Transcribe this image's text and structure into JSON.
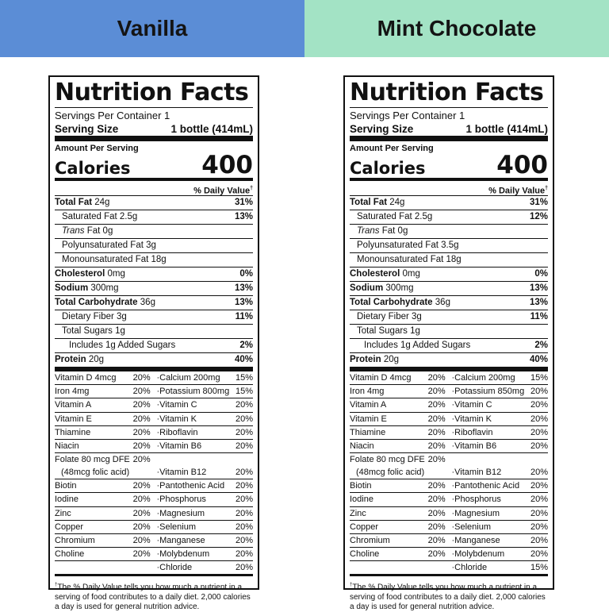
{
  "headers": {
    "left": "Vanilla",
    "right": "Mint Chocolate",
    "left_color": "#5b8dd6",
    "right_color": "#a3e3c5"
  },
  "labels": [
    {
      "title": "Nutrition Facts",
      "servings": "Servings Per Container 1",
      "serving_size_label": "Serving Size",
      "serving_size_value": "1 bottle (414mL)",
      "amount_per": "Amount Per Serving",
      "calories_label": "Calories",
      "calories_value": "400",
      "dv_header": "% Daily Value",
      "dv_mark": "†",
      "nutrients": [
        {
          "name": "Total Fat",
          "amount": "24g",
          "pct": "31%"
        },
        {
          "name": "Saturated Fat",
          "amount": "2.5g",
          "pct": "13%"
        },
        {
          "name": "Trans",
          "amount": "Fat 0g",
          "pct": ""
        },
        {
          "name": "Polyunsaturated Fat 3g",
          "amount": "",
          "pct": ""
        },
        {
          "name": "Monounsaturated Fat 18g",
          "amount": "",
          "pct": ""
        },
        {
          "name": "Cholesterol",
          "amount": "0mg",
          "pct": "0%"
        },
        {
          "name": "Sodium",
          "amount": "300mg",
          "pct": "13%"
        },
        {
          "name": "Total Carbohydrate",
          "amount": "36g",
          "pct": "13%"
        },
        {
          "name": "Dietary Fiber",
          "amount": "3g",
          "pct": "11%"
        },
        {
          "name": "Total Sugars 1g",
          "amount": "",
          "pct": ""
        },
        {
          "name": "Includes 1g Added Sugars",
          "amount": "",
          "pct": "2%"
        },
        {
          "name": "Protein",
          "amount": "20g",
          "pct": "40%"
        }
      ],
      "vitamins": [
        {
          "a": "Vitamin D 4mcg",
          "ap": "20%",
          "b": "·Calcium 200mg",
          "bp": "15%"
        },
        {
          "a": "Iron 4mg",
          "ap": "20%",
          "b": "·Potassium 800mg",
          "bp": "15%"
        },
        {
          "a": "Vitamin A",
          "ap": "20%",
          "b": "·Vitamin C",
          "bp": "20%"
        },
        {
          "a": "Vitamin E",
          "ap": "20%",
          "b": "·Vitamin K",
          "bp": "20%"
        },
        {
          "a": "Thiamine",
          "ap": "20%",
          "b": "·Riboflavin",
          "bp": "20%"
        },
        {
          "a": "Niacin",
          "ap": "20%",
          "b": "·Vitamin B6",
          "bp": "20%"
        },
        {
          "a": "Folate 80 mcg DFE",
          "a2": "(48mcg folic acid)",
          "ap": "20%",
          "b": "·Vitamin B12",
          "bp": "20%"
        },
        {
          "a": "Biotin",
          "ap": "20%",
          "b": "·Pantothenic Acid",
          "bp": "20%"
        },
        {
          "a": "Iodine",
          "ap": "20%",
          "b": "·Phosphorus",
          "bp": "20%"
        },
        {
          "a": "Zinc",
          "ap": "20%",
          "b": "·Magnesium",
          "bp": "20%"
        },
        {
          "a": "Copper",
          "ap": "20%",
          "b": "·Selenium",
          "bp": "20%"
        },
        {
          "a": "Chromium",
          "ap": "20%",
          "b": "·Manganese",
          "bp": "20%"
        },
        {
          "a": "Choline",
          "ap": "20%",
          "b": "·Molybdenum",
          "bp": "20%"
        },
        {
          "a": "",
          "ap": "",
          "b": "·Chloride",
          "bp": "20%"
        }
      ],
      "footnote_mark": "†",
      "footnote": "The % Daily Value tells you how much a nutrient in a serving of food contributes to a daily diet. 2,000 calories a day is used for general nutrition advice."
    },
    {
      "title": "Nutrition Facts",
      "servings": "Servings Per Container 1",
      "serving_size_label": "Serving Size",
      "serving_size_value": "1 bottle (414mL)",
      "amount_per": "Amount Per Serving",
      "calories_label": "Calories",
      "calories_value": "400",
      "dv_header": "% Daily Value",
      "dv_mark": "†",
      "nutrients": [
        {
          "name": "Total Fat",
          "amount": "24g",
          "pct": "31%"
        },
        {
          "name": "Saturated Fat",
          "amount": "2.5g",
          "pct": "12%"
        },
        {
          "name": "Trans",
          "amount": "Fat 0g",
          "pct": ""
        },
        {
          "name": "Polyunsaturated Fat 3.5g",
          "amount": "",
          "pct": ""
        },
        {
          "name": "Monounsaturated Fat 18g",
          "amount": "",
          "pct": ""
        },
        {
          "name": "Cholesterol",
          "amount": "0mg",
          "pct": "0%"
        },
        {
          "name": "Sodium",
          "amount": "300mg",
          "pct": "13%"
        },
        {
          "name": "Total Carbohydrate",
          "amount": "36g",
          "pct": "13%"
        },
        {
          "name": "Dietary Fiber",
          "amount": "3g",
          "pct": "11%"
        },
        {
          "name": "Total Sugars 1g",
          "amount": "",
          "pct": ""
        },
        {
          "name": "Includes 1g Added Sugars",
          "amount": "",
          "pct": "2%"
        },
        {
          "name": "Protein",
          "amount": "20g",
          "pct": "40%"
        }
      ],
      "vitamins": [
        {
          "a": "Vitamin D 4mcg",
          "ap": "20%",
          "b": "·Calcium 200mg",
          "bp": "15%"
        },
        {
          "a": "Iron 4mg",
          "ap": "20%",
          "b": "·Potassium 850mg",
          "bp": "20%"
        },
        {
          "a": "Vitamin A",
          "ap": "20%",
          "b": "·Vitamin C",
          "bp": "20%"
        },
        {
          "a": "Vitamin E",
          "ap": "20%",
          "b": "·Vitamin K",
          "bp": "20%"
        },
        {
          "a": "Thiamine",
          "ap": "20%",
          "b": "·Riboflavin",
          "bp": "20%"
        },
        {
          "a": "Niacin",
          "ap": "20%",
          "b": "·Vitamin B6",
          "bp": "20%"
        },
        {
          "a": "Folate 80 mcg DFE",
          "a2": "(48mcg folic acid)",
          "ap": "20%",
          "b": "·Vitamin B12",
          "bp": "20%"
        },
        {
          "a": "Biotin",
          "ap": "20%",
          "b": "·Pantothenic Acid",
          "bp": "20%"
        },
        {
          "a": "Iodine",
          "ap": "20%",
          "b": "·Phosphorus",
          "bp": "20%"
        },
        {
          "a": "Zinc",
          "ap": "20%",
          "b": "·Magnesium",
          "bp": "20%"
        },
        {
          "a": "Copper",
          "ap": "20%",
          "b": "·Selenium",
          "bp": "20%"
        },
        {
          "a": "Chromium",
          "ap": "20%",
          "b": "·Manganese",
          "bp": "20%"
        },
        {
          "a": "Choline",
          "ap": "20%",
          "b": "·Molybdenum",
          "bp": "20%"
        },
        {
          "a": "",
          "ap": "",
          "b": "·Chloride",
          "bp": "15%"
        }
      ],
      "footnote_mark": "†",
      "footnote": "The % Daily Value tells you how much a nutrient in a serving of food contributes to a daily diet. 2,000 calories a day is used for general nutrition advice."
    }
  ]
}
